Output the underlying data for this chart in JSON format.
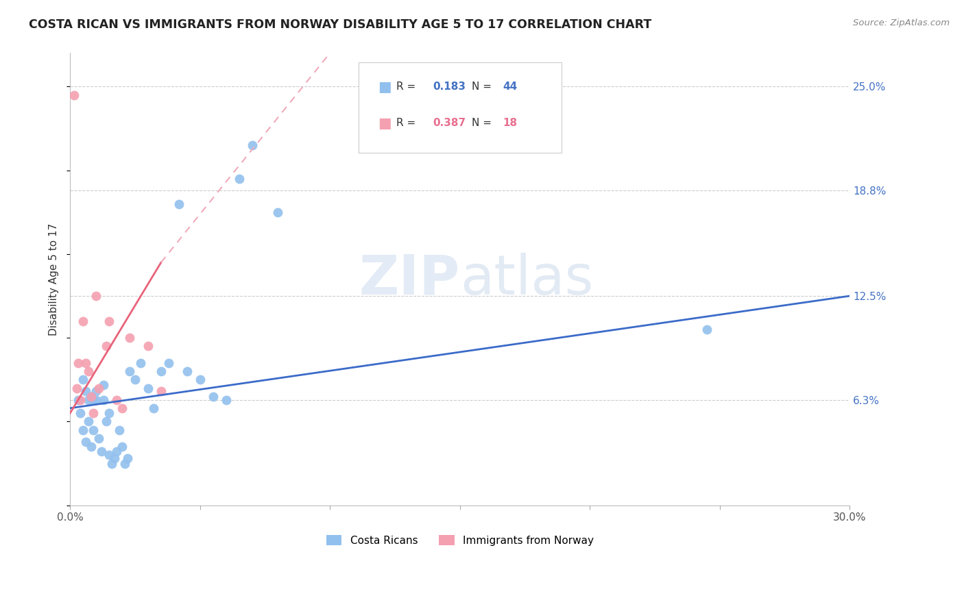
{
  "title": "COSTA RICAN VS IMMIGRANTS FROM NORWAY DISABILITY AGE 5 TO 17 CORRELATION CHART",
  "source": "Source: ZipAtlas.com",
  "ylabel": "Disability Age 5 to 17",
  "xlim": [
    0.0,
    30.0
  ],
  "ylim": [
    0.0,
    27.0
  ],
  "ytick_labels_right": [
    "25.0%",
    "18.8%",
    "12.5%",
    "6.3%"
  ],
  "ytick_values_right": [
    25.0,
    18.8,
    12.5,
    6.3
  ],
  "blue_color": "#92C0EE",
  "pink_color": "#F4A0B0",
  "blue_line_color": "#3B6BC9",
  "pink_line_color": "#E8637A",
  "pink_dashed_color": "#F0AABA",
  "watermark": "ZIPatlas",
  "costa_ricans_x": [
    0.3,
    0.4,
    0.5,
    0.5,
    0.6,
    0.6,
    0.7,
    0.7,
    0.8,
    0.8,
    0.9,
    0.9,
    1.0,
    1.0,
    1.1,
    1.2,
    1.3,
    1.3,
    1.4,
    1.5,
    1.5,
    1.6,
    1.7,
    1.8,
    1.9,
    2.0,
    2.1,
    2.2,
    2.3,
    2.5,
    2.7,
    3.0,
    3.2,
    3.5,
    3.8,
    4.2,
    4.5,
    5.0,
    5.5,
    6.0,
    6.5,
    7.0,
    8.0,
    24.5
  ],
  "costa_ricans_y": [
    6.3,
    5.5,
    4.5,
    7.5,
    3.8,
    6.8,
    6.3,
    5.0,
    3.5,
    6.5,
    4.5,
    6.3,
    6.3,
    6.8,
    4.0,
    3.2,
    6.3,
    7.2,
    5.0,
    5.5,
    3.0,
    2.5,
    2.8,
    3.2,
    4.5,
    3.5,
    2.5,
    2.8,
    8.0,
    7.5,
    8.5,
    7.0,
    5.8,
    8.0,
    8.5,
    18.0,
    8.0,
    7.5,
    6.5,
    6.3,
    19.5,
    21.5,
    17.5,
    10.5
  ],
  "norway_x": [
    0.15,
    0.25,
    0.3,
    0.4,
    0.5,
    0.6,
    0.7,
    0.8,
    0.9,
    1.0,
    1.1,
    1.4,
    1.5,
    1.8,
    2.0,
    2.3,
    3.0,
    3.5
  ],
  "norway_y": [
    24.5,
    7.0,
    8.5,
    6.3,
    11.0,
    8.5,
    8.0,
    6.5,
    5.5,
    12.5,
    7.0,
    9.5,
    11.0,
    6.3,
    5.8,
    10.0,
    9.5,
    6.8
  ],
  "blue_trend_x0": 0.0,
  "blue_trend_y0": 5.8,
  "blue_trend_x1": 30.0,
  "blue_trend_y1": 12.5,
  "pink_trend_x0": 0.0,
  "pink_trend_y0": 5.5,
  "pink_trend_x1": 3.5,
  "pink_trend_y1": 14.5,
  "pink_dashed_x0": 3.5,
  "pink_dashed_y0": 14.5,
  "pink_dashed_x1": 10.0,
  "pink_dashed_y1": 27.0
}
